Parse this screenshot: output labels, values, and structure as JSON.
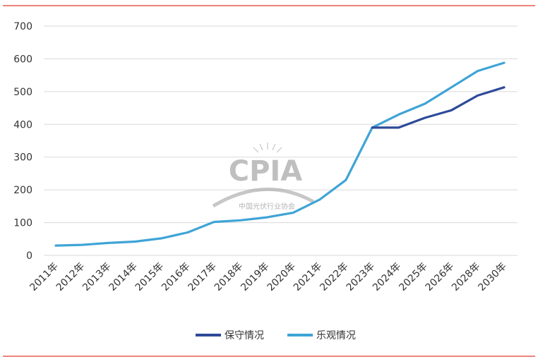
{
  "chart_data": {
    "type": "line",
    "title": "",
    "xlabel": "",
    "ylabel": "",
    "ylim": [
      0,
      700
    ],
    "yticks": [
      0,
      100,
      200,
      300,
      400,
      500,
      600,
      700
    ],
    "grid": true,
    "legend_position": "bottom",
    "categories": [
      "2011年",
      "2012年",
      "2013年",
      "2014年",
      "2015年",
      "2016年",
      "2017年",
      "2018年",
      "2019年",
      "2020年",
      "2021年",
      "2022年",
      "2023年",
      "2024年",
      "2025年",
      "2026年",
      "2028年",
      "2030年"
    ],
    "series": [
      {
        "name": "保守情况",
        "color": "#2e4a99",
        "values": [
          null,
          null,
          null,
          null,
          null,
          null,
          null,
          null,
          null,
          null,
          null,
          null,
          390,
          390,
          420,
          443,
          488,
          513
        ]
      },
      {
        "name": "乐观情况",
        "color": "#3fa4d6",
        "values": [
          30,
          32,
          38,
          42,
          52,
          70,
          102,
          107,
          116,
          130,
          170,
          230,
          390,
          430,
          463,
          513,
          563,
          588
        ]
      }
    ]
  },
  "watermark": {
    "logo_text": "CPIA",
    "org_name": "中国光伏行业协会"
  },
  "colors": {
    "rule": "#e03a2e",
    "grid": "#d9d9d9"
  }
}
